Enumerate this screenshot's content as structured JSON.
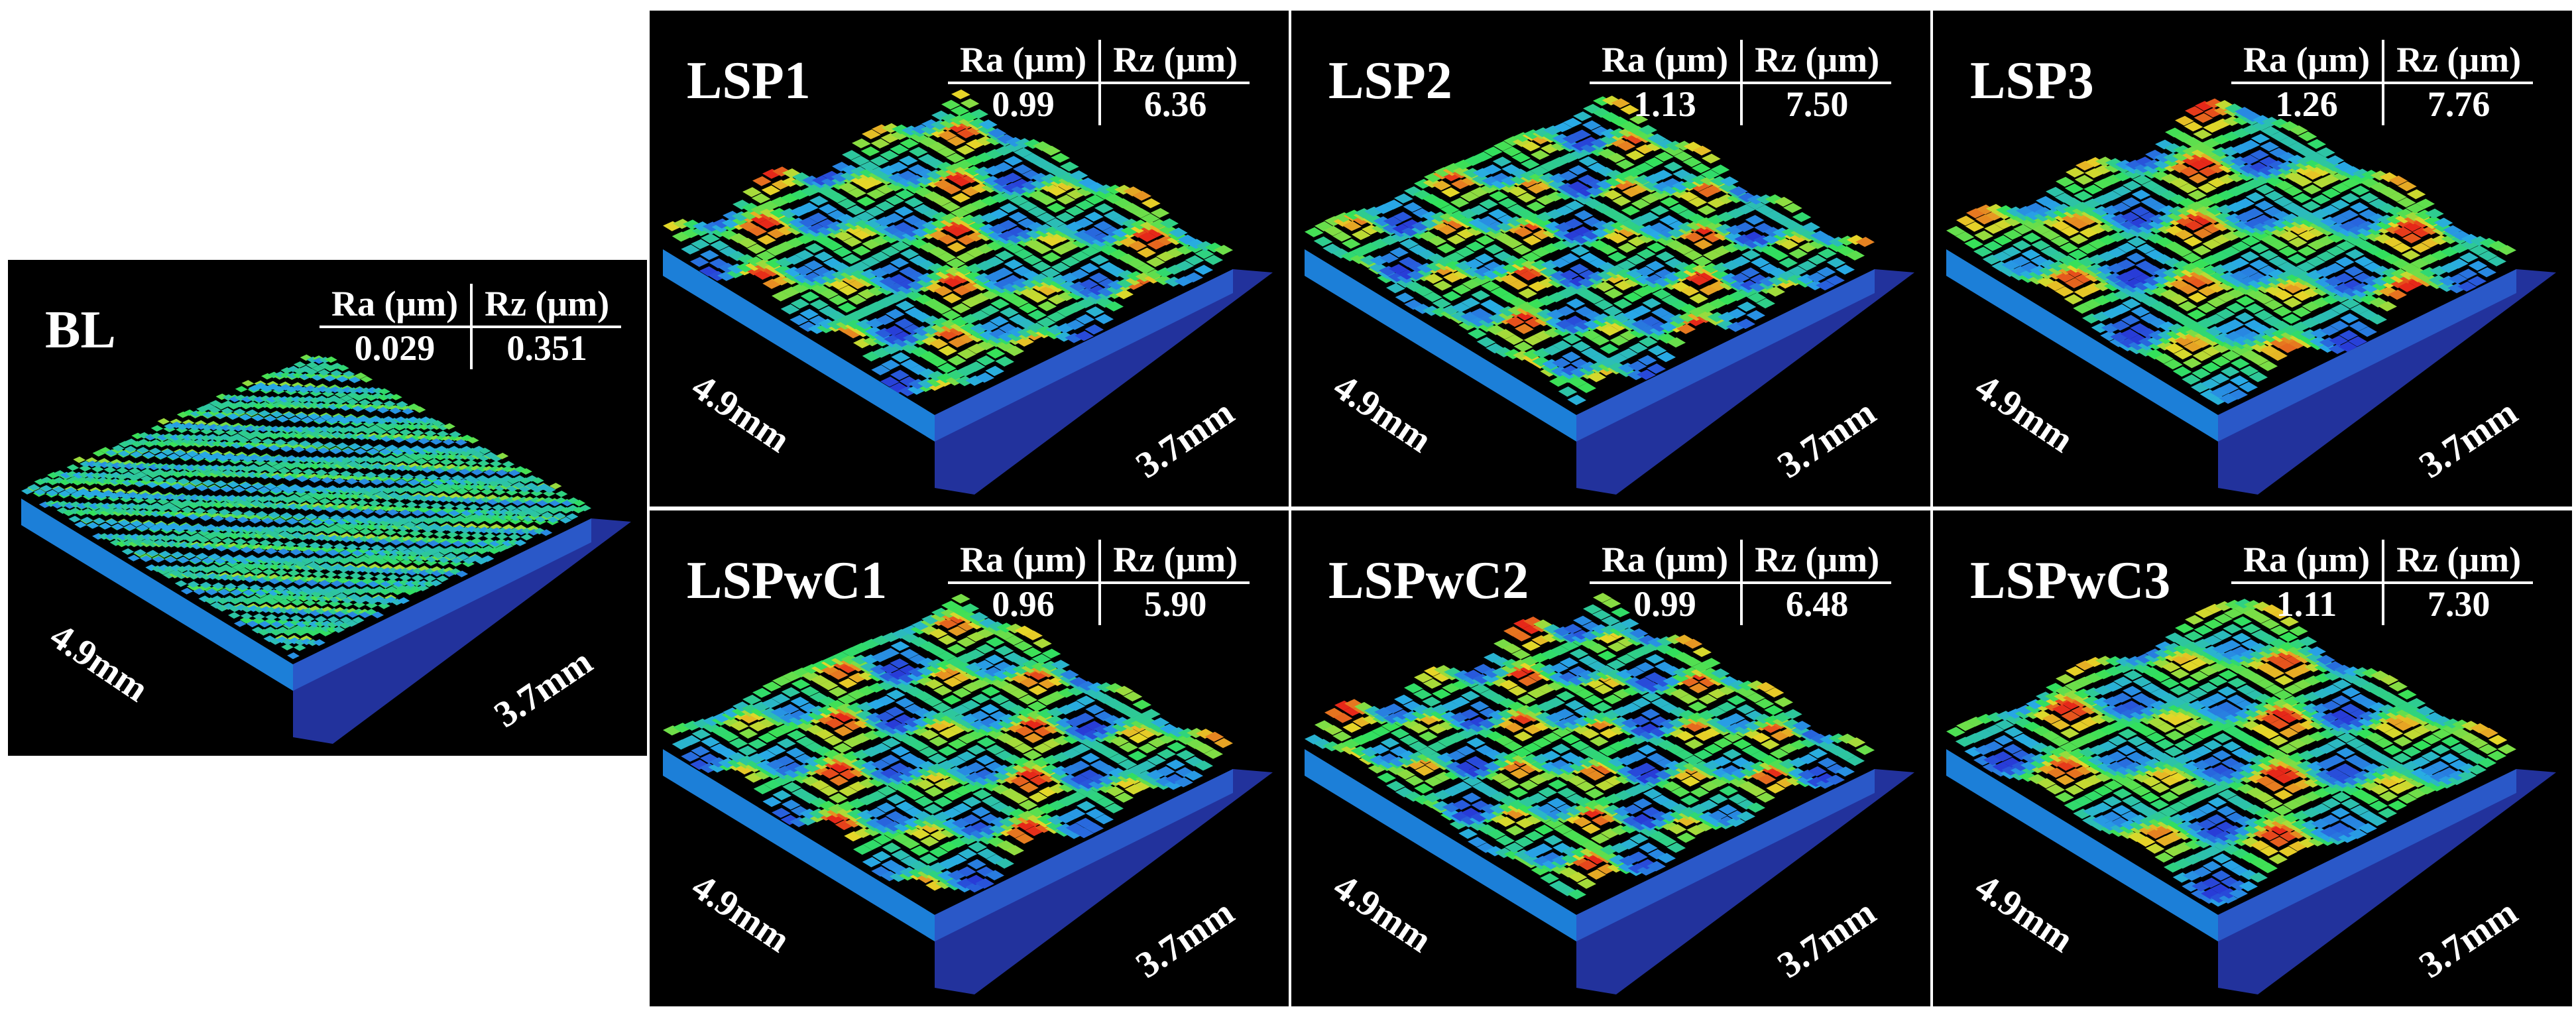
{
  "header_ra": "Ra (μm)",
  "header_rz": "Rz (μm)",
  "dim_a": "4.9mm",
  "dim_b": "3.7mm",
  "colors": {
    "base": "#22329c",
    "background": "#000000",
    "peak": "#e8281a",
    "valley": "#2a4ad8",
    "mid": "#2ee05a"
  },
  "panels": [
    {
      "id": "BL",
      "title": "BL",
      "ra": "0.029",
      "rz": "0.351",
      "texture": "fine"
    },
    {
      "id": "LSP1",
      "title": "LSP1",
      "ra": "0.99",
      "rz": "6.36",
      "texture": "dimpled"
    },
    {
      "id": "LSP2",
      "title": "LSP2",
      "ra": "1.13",
      "rz": "7.50",
      "texture": "dimpled"
    },
    {
      "id": "LSP3",
      "title": "LSP3",
      "ra": "1.26",
      "rz": "7.76",
      "texture": "dimpled"
    },
    {
      "id": "LSPwC1",
      "title": "LSPwC1",
      "ra": "0.96",
      "rz": "5.90",
      "texture": "dimpled"
    },
    {
      "id": "LSPwC2",
      "title": "LSPwC2",
      "ra": "0.99",
      "rz": "6.48",
      "texture": "dimpled"
    },
    {
      "id": "LSPwC3",
      "title": "LSPwC3",
      "ra": "1.11",
      "rz": "7.30",
      "texture": "dimpled"
    }
  ]
}
